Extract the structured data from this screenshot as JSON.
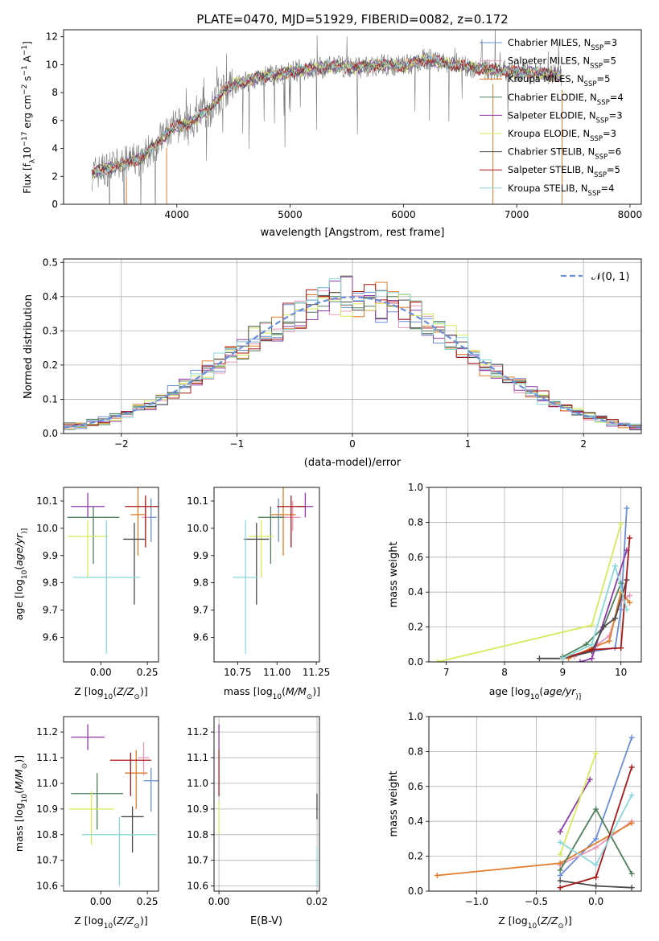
{
  "chart_data": [
    {
      "panel": "spectrum",
      "type": "line",
      "title": "PLATE=0470, MJD=51929, FIBERID=0082, z=0.172",
      "xlabel": "wavelength [Angstrom, rest frame]",
      "ylabel": "Flux [f",
      "ylabel_parts": [
        "Flux [f",
        "λ",
        "10",
        "−17",
        " erg cm",
        "−2",
        " s",
        "−1",
        " A",
        "−1",
        "]"
      ],
      "xlim": [
        3000,
        8100
      ],
      "ylim": [
        0,
        12.5
      ],
      "xticks": [
        4000,
        5000,
        6000,
        7000,
        8000
      ],
      "yticks": [
        0,
        2,
        4,
        6,
        8,
        10,
        12
      ],
      "grid": false,
      "legend_position": "right",
      "legend": [
        {
          "prefix": "Chabrier MILES, N",
          "sub": "SSP",
          "suffix": "=3",
          "color": "#6a8dd8"
        },
        {
          "prefix": "Salpeter MILES, N",
          "sub": "SSP",
          "suffix": "=5",
          "color": "#e897b8"
        },
        {
          "prefix": "Kroupa MILES, N",
          "sub": "SSP",
          "suffix": "=5",
          "color": "#e07b2a"
        },
        {
          "prefix": "Chabrier ELODIE, N",
          "sub": "SSP",
          "suffix": "=4",
          "color": "#4f7f5b"
        },
        {
          "prefix": "Salpeter ELODIE, N",
          "sub": "SSP",
          "suffix": "=3",
          "color": "#8e3aa8"
        },
        {
          "prefix": "Kroupa ELODIE, N",
          "sub": "SSP",
          "suffix": "=3",
          "color": "#d8ea5a"
        },
        {
          "prefix": "Chabrier STELIB, N",
          "sub": "SSP",
          "suffix": "=6",
          "color": "#4a4a4a"
        },
        {
          "prefix": "Salpeter STELIB, N",
          "sub": "SSP",
          "suffix": "=5",
          "color": "#a81818"
        },
        {
          "prefix": "Kroupa STELIB, N",
          "sub": "SSP",
          "suffix": "=4",
          "color": "#8ad8dc"
        }
      ],
      "envelope": [
        [
          3250,
          2.2
        ],
        [
          3400,
          2.6
        ],
        [
          3550,
          2.9
        ],
        [
          3700,
          3.4
        ],
        [
          3800,
          4.2
        ],
        [
          3900,
          5.0
        ],
        [
          4000,
          5.6
        ],
        [
          4100,
          5.8
        ],
        [
          4200,
          6.3
        ],
        [
          4300,
          6.8
        ],
        [
          4400,
          8.0
        ],
        [
          4500,
          8.6
        ],
        [
          4600,
          8.8
        ],
        [
          4700,
          9.0
        ],
        [
          4800,
          9.2
        ],
        [
          4900,
          9.3
        ],
        [
          5000,
          9.5
        ],
        [
          5200,
          9.7
        ],
        [
          5400,
          9.9
        ],
        [
          5600,
          9.8
        ],
        [
          5800,
          10.0
        ],
        [
          6000,
          9.9
        ],
        [
          6200,
          10.4
        ],
        [
          6400,
          10.0
        ],
        [
          6600,
          9.8
        ],
        [
          6800,
          9.6
        ],
        [
          7000,
          9.5
        ],
        [
          7200,
          9.4
        ],
        [
          7400,
          9.2
        ]
      ]
    },
    {
      "panel": "residuals",
      "type": "line",
      "xlabel": "(data-model)/error",
      "ylabel": "Normed distribution",
      "xlim": [
        -2.5,
        2.5
      ],
      "ylim": [
        0,
        0.51
      ],
      "xticks": [
        -2,
        -1,
        0,
        1,
        2
      ],
      "yticks": [
        0.0,
        0.1,
        0.2,
        0.3,
        0.4,
        0.5
      ],
      "grid": true,
      "legend_position": "top-right",
      "legend_label": "𝒩(0, 1)",
      "legend_color": "#6a8dd8"
    },
    {
      "panel": "age-vs-Z",
      "type": "scatter",
      "xlabel": "Z [log",
      "xlabel_parts": [
        "Z [log",
        "10",
        "(",
        "Z/Z",
        "⊙",
        ")]"
      ],
      "ylabel": "age  [log",
      "ylabel_parts": [
        "age  [log",
        "10",
        "(",
        "age/yr",
        ")]"
      ],
      "xlim": [
        -0.2,
        0.31
      ],
      "ylim": [
        9.51,
        10.15
      ],
      "xticks": [
        0.0,
        0.25
      ],
      "xtick_labels": [
        "0.00",
        "0.25"
      ],
      "yticks": [
        9.6,
        9.7,
        9.8,
        9.9,
        10.0,
        10.1
      ],
      "grid": false,
      "points": [
        {
          "x": 0.27,
          "y": 10.04,
          "xerr": 0.03,
          "ylo": 9.95,
          "yhi": 10.11,
          "color": "#6a8dd8"
        },
        {
          "x": 0.24,
          "y": 10.04,
          "xerr": 0.02,
          "ylo": 9.99,
          "yhi": 10.1,
          "color": "#e897b8"
        },
        {
          "x": 0.2,
          "y": 10.05,
          "xerr": 0.04,
          "ylo": 9.9,
          "yhi": 10.15,
          "color": "#e07b2a"
        },
        {
          "x": -0.04,
          "y": 10.04,
          "xerr": 0.14,
          "ylo": 9.87,
          "yhi": 10.08,
          "color": "#4f7f5b"
        },
        {
          "x": -0.07,
          "y": 10.08,
          "xerr": 0.09,
          "ylo": 10.04,
          "yhi": 10.13,
          "color": "#8e3aa8"
        },
        {
          "x": -0.07,
          "y": 9.97,
          "xerr": 0.11,
          "ylo": 9.82,
          "yhi": 10.03,
          "color": "#d8ea5a"
        },
        {
          "x": 0.18,
          "y": 9.96,
          "xerr": 0.06,
          "ylo": 9.72,
          "yhi": 10.02,
          "color": "#4a4a4a"
        },
        {
          "x": 0.24,
          "y": 10.08,
          "xerr": 0.11,
          "ylo": 9.93,
          "yhi": 10.12,
          "color": "#a81818"
        },
        {
          "x": 0.03,
          "y": 9.82,
          "xerr": 0.18,
          "ylo": 9.54,
          "yhi": 10.03,
          "color": "#8ad8dc"
        }
      ]
    },
    {
      "panel": "age-vs-mass",
      "type": "scatter",
      "xlabel": "mass [log",
      "xlabel_parts": [
        "mass [log",
        "10",
        "(",
        "M/M",
        "⊙",
        ")]"
      ],
      "xlim": [
        10.6,
        11.27
      ],
      "ylim": [
        9.51,
        10.15
      ],
      "xticks": [
        10.75,
        11.0,
        11.25
      ],
      "xtick_labels": [
        "10.75",
        "11.00",
        "11.25"
      ],
      "yticks": [
        9.6,
        9.7,
        9.8,
        9.9,
        10.0,
        10.1
      ],
      "grid": false,
      "points": [
        {
          "x": 11.01,
          "y": 10.04,
          "xerr": 0.06,
          "ylo": 9.95,
          "yhi": 10.11,
          "color": "#6a8dd8"
        },
        {
          "x": 11.1,
          "y": 10.04,
          "xerr": 0.05,
          "ylo": 9.99,
          "yhi": 10.1,
          "color": "#e897b8"
        },
        {
          "x": 11.04,
          "y": 10.05,
          "xerr": 0.08,
          "ylo": 9.9,
          "yhi": 10.15,
          "color": "#e07b2a"
        },
        {
          "x": 10.96,
          "y": 10.04,
          "xerr": 0.08,
          "ylo": 9.87,
          "yhi": 10.08,
          "color": "#4f7f5b"
        },
        {
          "x": 11.18,
          "y": 10.08,
          "xerr": 0.05,
          "ylo": 10.04,
          "yhi": 10.13,
          "color": "#8e3aa8"
        },
        {
          "x": 10.9,
          "y": 9.97,
          "xerr": 0.08,
          "ylo": 9.82,
          "yhi": 10.03,
          "color": "#d8ea5a"
        },
        {
          "x": 10.87,
          "y": 9.96,
          "xerr": 0.08,
          "ylo": 9.72,
          "yhi": 10.02,
          "color": "#4a4a4a"
        },
        {
          "x": 11.09,
          "y": 10.08,
          "xerr": 0.09,
          "ylo": 9.93,
          "yhi": 10.12,
          "color": "#a81818"
        },
        {
          "x": 10.8,
          "y": 9.82,
          "xerr": 0.08,
          "ylo": 9.54,
          "yhi": 10.03,
          "color": "#8ad8dc"
        }
      ]
    },
    {
      "panel": "weight-vs-age",
      "type": "line",
      "xlabel": "age  [log",
      "xlabel_parts": [
        "age  [log",
        "10",
        "(",
        "age/yr",
        ")]"
      ],
      "ylabel": "mass weight",
      "xlim": [
        6.7,
        10.35
      ],
      "ylim": [
        0,
        1.0
      ],
      "xticks": [
        7,
        8,
        9,
        10
      ],
      "yticks": [
        0.0,
        0.2,
        0.4,
        0.6,
        0.8,
        1.0
      ],
      "grid": true,
      "series": [
        {
          "color": "#6a8dd8",
          "x": [
            9.0,
            9.5,
            9.9,
            10.0,
            10.1
          ],
          "y": [
            0.02,
            0.06,
            0.08,
            0.3,
            0.88
          ]
        },
        {
          "color": "#e897b8",
          "x": [
            9.2,
            9.6,
            9.8,
            10.0,
            10.15
          ],
          "y": [
            0.03,
            0.1,
            0.15,
            0.35,
            0.38
          ]
        },
        {
          "color": "#e07b2a",
          "x": [
            9.1,
            9.5,
            9.8,
            10.0,
            10.15
          ],
          "y": [
            0.02,
            0.08,
            0.12,
            0.4,
            0.34
          ]
        },
        {
          "color": "#4f7f5b",
          "x": [
            9.0,
            9.4,
            9.7,
            10.0
          ],
          "y": [
            0.03,
            0.1,
            0.2,
            0.45
          ]
        },
        {
          "color": "#8e3aa8",
          "x": [
            9.3,
            9.5,
            10.1
          ],
          "y": [
            0.0,
            0.02,
            0.64
          ]
        },
        {
          "color": "#d8ea5a",
          "x": [
            6.85,
            9.5,
            10.0
          ],
          "y": [
            0.0,
            0.21,
            0.79
          ]
        },
        {
          "color": "#4a4a4a",
          "x": [
            8.6,
            9.0,
            9.5,
            9.7,
            9.9,
            10.1
          ],
          "y": [
            0.02,
            0.02,
            0.06,
            0.2,
            0.25,
            0.47
          ]
        },
        {
          "color": "#a81818",
          "x": [
            9.0,
            9.5,
            10.0,
            10.15
          ],
          "y": [
            0.02,
            0.07,
            0.08,
            0.71
          ]
        },
        {
          "color": "#8ad8dc",
          "x": [
            9.0,
            9.5,
            9.9,
            10.1
          ],
          "y": [
            0.02,
            0.1,
            0.55,
            0.3
          ]
        }
      ]
    },
    {
      "panel": "mass-vs-Z",
      "type": "scatter",
      "xlabel": "Z [log",
      "xlabel_parts": [
        "Z [log",
        "10",
        "(",
        "Z/Z",
        "⊙",
        ")]"
      ],
      "ylabel": "mass [log",
      "ylabel_parts": [
        "mass [log",
        "10",
        "(",
        "M/M",
        "⊙",
        ")]"
      ],
      "xlim": [
        -0.2,
        0.31
      ],
      "ylim": [
        10.58,
        11.26
      ],
      "xticks": [
        0.0,
        0.25
      ],
      "xtick_labels": [
        "0.00",
        "0.25"
      ],
      "yticks": [
        10.6,
        10.7,
        10.8,
        10.9,
        11.0,
        11.1,
        11.2
      ],
      "grid": false,
      "points": [
        {
          "x": 0.27,
          "y": 11.01,
          "xerr": 0.04,
          "ylo": 10.89,
          "yhi": 11.06,
          "color": "#6a8dd8"
        },
        {
          "x": 0.23,
          "y": 11.1,
          "xerr": 0.03,
          "ylo": 11.03,
          "yhi": 11.16,
          "color": "#e897b8"
        },
        {
          "x": 0.19,
          "y": 11.04,
          "xerr": 0.06,
          "ylo": 10.9,
          "yhi": 11.13,
          "color": "#e07b2a"
        },
        {
          "x": -0.02,
          "y": 10.96,
          "xerr": 0.14,
          "ylo": 10.82,
          "yhi": 11.04,
          "color": "#4f7f5b"
        },
        {
          "x": -0.07,
          "y": 11.18,
          "xerr": 0.09,
          "ylo": 11.13,
          "yhi": 11.23,
          "color": "#8e3aa8"
        },
        {
          "x": -0.05,
          "y": 10.9,
          "xerr": 0.12,
          "ylo": 10.76,
          "yhi": 10.97,
          "color": "#d8ea5a"
        },
        {
          "x": 0.17,
          "y": 10.87,
          "xerr": 0.06,
          "ylo": 10.73,
          "yhi": 10.91,
          "color": "#4a4a4a"
        },
        {
          "x": 0.16,
          "y": 11.09,
          "xerr": 0.11,
          "ylo": 10.95,
          "yhi": 11.12,
          "color": "#a81818"
        },
        {
          "x": 0.1,
          "y": 10.8,
          "xerr": 0.2,
          "ylo": 10.6,
          "yhi": 10.87,
          "color": "#8ad8dc"
        }
      ]
    },
    {
      "panel": "mass-vs-EBV",
      "type": "scatter",
      "xlabel": "E(B-V)",
      "xlim": [
        -0.001,
        0.0205
      ],
      "ylim": [
        10.58,
        11.26
      ],
      "xticks": [
        0.0,
        0.02
      ],
      "xtick_labels": [
        "0.00",
        "0.02"
      ],
      "yticks": [
        10.6,
        10.7,
        10.8,
        10.9,
        11.0,
        11.1,
        11.2
      ],
      "grid": true,
      "points": [
        {
          "x": 0.0,
          "ylo": 11.13,
          "yhi": 11.23,
          "color": "#8e3aa8"
        },
        {
          "x": 0.0,
          "ylo": 10.95,
          "yhi": 11.13,
          "color": "#a81818"
        },
        {
          "x": 0.0,
          "ylo": 10.8,
          "yhi": 10.93,
          "color": "#d8ea5a"
        },
        {
          "x": 0.02,
          "ylo": 10.86,
          "yhi": 10.96,
          "color": "#4a4a4a"
        },
        {
          "x": 0.02,
          "ylo": 10.6,
          "yhi": 10.75,
          "color": "#8ad8dc"
        }
      ]
    },
    {
      "panel": "weight-vs-Z",
      "type": "line",
      "xlabel": "Z [log",
      "xlabel_parts": [
        "Z [log",
        "10",
        "(",
        "Z/Z",
        "⊙",
        ")]"
      ],
      "ylabel": "mass weight",
      "xlim": [
        -1.4,
        0.38
      ],
      "ylim": [
        0,
        1.0
      ],
      "xticks": [
        -1.0,
        -0.5,
        0.0
      ],
      "xtick_labels": [
        "−1.0",
        "−0.5",
        "0.0"
      ],
      "yticks": [
        0.0,
        0.2,
        0.4,
        0.6,
        0.8,
        1.0
      ],
      "grid": true,
      "series": [
        {
          "color": "#6a8dd8",
          "x": [
            -0.3,
            0.0,
            0.3
          ],
          "y": [
            0.09,
            0.3,
            0.88
          ]
        },
        {
          "color": "#e897b8",
          "x": [
            -0.3,
            0.0,
            0.3
          ],
          "y": [
            0.15,
            0.25,
            0.4
          ]
        },
        {
          "color": "#e07b2a",
          "x": [
            -1.33,
            -0.3,
            0.3
          ],
          "y": [
            0.09,
            0.16,
            0.39
          ]
        },
        {
          "color": "#4f7f5b",
          "x": [
            -0.3,
            0.0,
            0.3
          ],
          "y": [
            0.12,
            0.47,
            0.1
          ]
        },
        {
          "color": "#8e3aa8",
          "x": [
            -0.3,
            -0.05
          ],
          "y": [
            0.34,
            0.64
          ]
        },
        {
          "color": "#d8ea5a",
          "x": [
            -0.3,
            0.0
          ],
          "y": [
            0.21,
            0.79
          ]
        },
        {
          "color": "#4a4a4a",
          "x": [
            -0.3,
            0.0,
            0.3
          ],
          "y": [
            0.06,
            0.03,
            0.02
          ]
        },
        {
          "color": "#a81818",
          "x": [
            -0.3,
            0.0,
            0.3
          ],
          "y": [
            0.02,
            0.08,
            0.71
          ]
        },
        {
          "color": "#8ad8dc",
          "x": [
            -0.3,
            0.0,
            0.3
          ],
          "y": [
            0.28,
            0.15,
            0.55
          ]
        }
      ]
    }
  ]
}
